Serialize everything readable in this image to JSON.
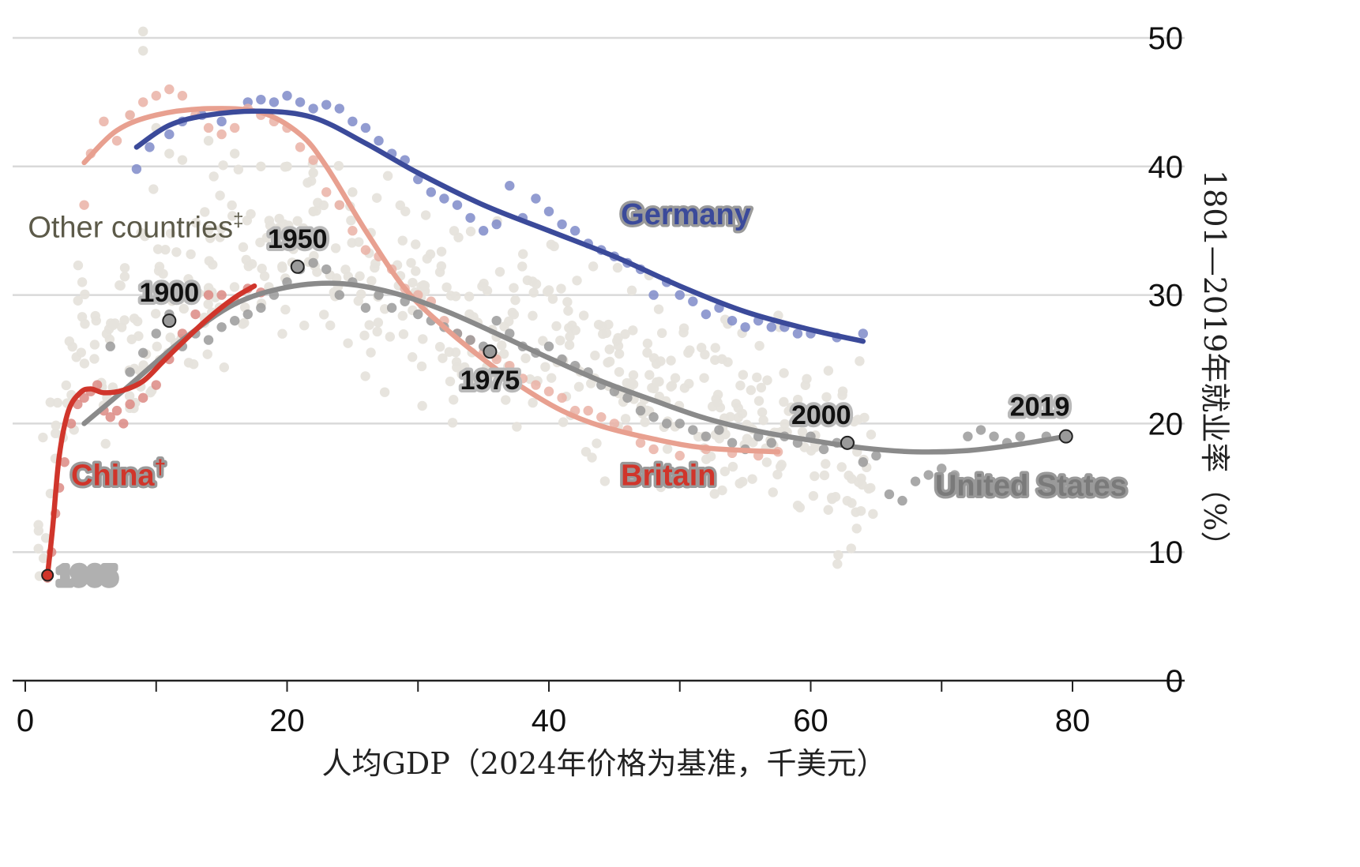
{
  "chart_data": {
    "type": "scatter",
    "xlabel": "人均GDP（2024年价格为基准，千美元）",
    "ylabel": "1801—2019年就业率（%）",
    "xlim": [
      -1,
      89
    ],
    "ylim": [
      0,
      52
    ],
    "x_ticks": [
      0,
      20,
      40,
      60,
      80
    ],
    "y_ticks": [
      0,
      10,
      20,
      30,
      40,
      50
    ],
    "grid": "horizontal",
    "colors": {
      "germany": "#3b4a9a",
      "germany_points": "#7f8bc9",
      "britain": "#e8a090",
      "britain_points": "#eab2a6",
      "china": "#d0352b",
      "china_points": "#dc8a84",
      "us": "#8a8a8a",
      "us_points": "#9a9a9a",
      "other_points": "#e6e3dc",
      "grid": "#d9d9d9"
    },
    "series": [
      {
        "name": "Germany",
        "color": "#3b4a9a",
        "trend": [
          [
            8.5,
            41.5
          ],
          [
            11,
            43.2
          ],
          [
            14,
            44
          ],
          [
            18,
            44.3
          ],
          [
            22,
            43.8
          ],
          [
            26,
            41.8
          ],
          [
            30,
            39.5
          ],
          [
            35,
            37
          ],
          [
            40,
            35
          ],
          [
            45,
            33
          ],
          [
            50,
            30.7
          ],
          [
            55,
            28.7
          ],
          [
            60,
            27.3
          ],
          [
            64,
            26.4
          ]
        ],
        "points": [
          [
            8.5,
            39.8
          ],
          [
            9.5,
            41.5
          ],
          [
            11,
            42.5
          ],
          [
            12,
            43.5
          ],
          [
            13.5,
            44
          ],
          [
            15,
            43.5
          ],
          [
            17,
            45
          ],
          [
            18,
            45.2
          ],
          [
            19,
            45
          ],
          [
            20,
            45.5
          ],
          [
            21,
            45
          ],
          [
            22,
            44.5
          ],
          [
            23,
            44.8
          ],
          [
            24,
            44.5
          ],
          [
            25,
            43.5
          ],
          [
            26,
            43
          ],
          [
            27,
            42
          ],
          [
            28,
            41
          ],
          [
            29,
            40.5
          ],
          [
            30,
            39
          ],
          [
            31,
            38
          ],
          [
            32,
            37.5
          ],
          [
            33,
            37
          ],
          [
            34,
            36
          ],
          [
            35,
            35
          ],
          [
            36,
            35.5
          ],
          [
            37,
            38.5
          ],
          [
            38,
            36
          ],
          [
            39,
            37.5
          ],
          [
            40,
            36.5
          ],
          [
            41,
            35.5
          ],
          [
            42,
            35
          ],
          [
            43,
            34
          ],
          [
            44,
            33.5
          ],
          [
            45,
            33
          ],
          [
            46,
            32.5
          ],
          [
            47,
            32
          ],
          [
            48,
            30
          ],
          [
            49,
            31
          ],
          [
            50,
            30
          ],
          [
            51,
            29.5
          ],
          [
            52,
            28.5
          ],
          [
            53,
            29
          ],
          [
            54,
            28
          ],
          [
            55,
            27.5
          ],
          [
            56,
            28
          ],
          [
            57,
            27.5
          ],
          [
            58,
            27.5
          ],
          [
            59,
            27
          ],
          [
            60,
            27
          ],
          [
            62,
            26.7
          ],
          [
            64,
            27
          ]
        ]
      },
      {
        "name": "Britain",
        "color": "#e8a090",
        "trend": [
          [
            4.5,
            40.3
          ],
          [
            7,
            42.8
          ],
          [
            10,
            44
          ],
          [
            14,
            44.5
          ],
          [
            18,
            44.2
          ],
          [
            21,
            42.5
          ],
          [
            23,
            40
          ],
          [
            26,
            35
          ],
          [
            29,
            30.5
          ],
          [
            32,
            27.5
          ],
          [
            35,
            25
          ],
          [
            38,
            22.8
          ],
          [
            41,
            21
          ],
          [
            44,
            19.8
          ],
          [
            48,
            18.8
          ],
          [
            52,
            18.1
          ],
          [
            57.5,
            17.8
          ]
        ],
        "points": [
          [
            4.5,
            37
          ],
          [
            5,
            41
          ],
          [
            6,
            43.5
          ],
          [
            7,
            42
          ],
          [
            8,
            44
          ],
          [
            9,
            45
          ],
          [
            10,
            45.5
          ],
          [
            11,
            46
          ],
          [
            12,
            45.5
          ],
          [
            13,
            44
          ],
          [
            14,
            43
          ],
          [
            15,
            42.5
          ],
          [
            16,
            43
          ],
          [
            17,
            44.5
          ],
          [
            18,
            44
          ],
          [
            19,
            43.5
          ],
          [
            20,
            43
          ],
          [
            21,
            41.5
          ],
          [
            22,
            40.5
          ],
          [
            23,
            38
          ],
          [
            24,
            37
          ],
          [
            25,
            35
          ],
          [
            26,
            33.5
          ],
          [
            27,
            33
          ],
          [
            28,
            32
          ],
          [
            29,
            30.5
          ],
          [
            30,
            30
          ],
          [
            31,
            29.5
          ],
          [
            32,
            28
          ],
          [
            33,
            27
          ],
          [
            34,
            26.5
          ],
          [
            35,
            25.5
          ],
          [
            36,
            25
          ],
          [
            37,
            24.5
          ],
          [
            38,
            23.5
          ],
          [
            39,
            23
          ],
          [
            40,
            22.5
          ],
          [
            41,
            22
          ],
          [
            42,
            21
          ],
          [
            43,
            21
          ],
          [
            44,
            20.5
          ],
          [
            45,
            20
          ],
          [
            46,
            19.5
          ],
          [
            47,
            18.5
          ],
          [
            48,
            18
          ],
          [
            50,
            17.5
          ],
          [
            52,
            18
          ],
          [
            54,
            17.7
          ],
          [
            56,
            17.5
          ],
          [
            57.5,
            17.8
          ]
        ]
      },
      {
        "name": "China†",
        "color": "#d0352b",
        "trend": [
          [
            1.7,
            8.2
          ],
          [
            2.1,
            12
          ],
          [
            2.6,
            17.5
          ],
          [
            3.3,
            21
          ],
          [
            4.2,
            22.4
          ],
          [
            5,
            22.7
          ],
          [
            6,
            22.4
          ],
          [
            7.5,
            22.6
          ],
          [
            9,
            23.3
          ],
          [
            10.5,
            24.8
          ],
          [
            12,
            26.3
          ],
          [
            14,
            28.2
          ],
          [
            16,
            29.8
          ],
          [
            17.5,
            30.7
          ]
        ],
        "points": [
          [
            1.7,
            8
          ],
          [
            2,
            10
          ],
          [
            2.3,
            13
          ],
          [
            2.6,
            15
          ],
          [
            3,
            17
          ],
          [
            3.5,
            20
          ],
          [
            4,
            21.5
          ],
          [
            4.5,
            22
          ],
          [
            5,
            22.5
          ],
          [
            5.5,
            23
          ],
          [
            6,
            21
          ],
          [
            6.5,
            20.5
          ],
          [
            7,
            21
          ],
          [
            7.5,
            20
          ],
          [
            8,
            21.5
          ],
          [
            9,
            22
          ],
          [
            10,
            23
          ],
          [
            11,
            25
          ],
          [
            12,
            27
          ],
          [
            13,
            28.5
          ],
          [
            14,
            30
          ],
          [
            15,
            30
          ],
          [
            16,
            29.5
          ],
          [
            17,
            30.5
          ],
          [
            18,
            30.2
          ]
        ]
      },
      {
        "name": "United States",
        "color": "#8a8a8a",
        "trend": [
          [
            4.5,
            20
          ],
          [
            8,
            23
          ],
          [
            12,
            26.5
          ],
          [
            16,
            29.3
          ],
          [
            20,
            30.6
          ],
          [
            24,
            30.9
          ],
          [
            28,
            30.2
          ],
          [
            32,
            28.8
          ],
          [
            36,
            27
          ],
          [
            40,
            25.1
          ],
          [
            44,
            23.3
          ],
          [
            48,
            21.8
          ],
          [
            52,
            20.4
          ],
          [
            56,
            19.4
          ],
          [
            60,
            18.7
          ],
          [
            64,
            18.1
          ],
          [
            68,
            17.8
          ],
          [
            72,
            17.9
          ],
          [
            76,
            18.4
          ],
          [
            79.5,
            19
          ]
        ],
        "points": [
          [
            6.5,
            26
          ],
          [
            8,
            24
          ],
          [
            9,
            25.5
          ],
          [
            10,
            27
          ],
          [
            11,
            28.5
          ],
          [
            12,
            26
          ],
          [
            13,
            27
          ],
          [
            14,
            26.5
          ],
          [
            15,
            27.5
          ],
          [
            16,
            28
          ],
          [
            17,
            28.5
          ],
          [
            18,
            29
          ],
          [
            19,
            30
          ],
          [
            20,
            31
          ],
          [
            21,
            32
          ],
          [
            22,
            32.5
          ],
          [
            23,
            32
          ],
          [
            24,
            30
          ],
          [
            25,
            31
          ],
          [
            26,
            29
          ],
          [
            27,
            30
          ],
          [
            28,
            29
          ],
          [
            29,
            29.5
          ],
          [
            30,
            28.5
          ],
          [
            31,
            28
          ],
          [
            32,
            27.5
          ],
          [
            33,
            27
          ],
          [
            34,
            26.5
          ],
          [
            35,
            26
          ],
          [
            36,
            28
          ],
          [
            37,
            27
          ],
          [
            38,
            26
          ],
          [
            39,
            25.5
          ],
          [
            40,
            26
          ],
          [
            41,
            25
          ],
          [
            42,
            24.5
          ],
          [
            43,
            24
          ],
          [
            44,
            23
          ],
          [
            45,
            22.5
          ],
          [
            46,
            22
          ],
          [
            47,
            21
          ],
          [
            48,
            20.5
          ],
          [
            49,
            20
          ],
          [
            50,
            20
          ],
          [
            51,
            19.5
          ],
          [
            52,
            19
          ],
          [
            53,
            19.5
          ],
          [
            54,
            18.5
          ],
          [
            55,
            18
          ],
          [
            56,
            19
          ],
          [
            57,
            18.5
          ],
          [
            58,
            19
          ],
          [
            59,
            18.5
          ],
          [
            60,
            19
          ],
          [
            61,
            18
          ],
          [
            62,
            18.5
          ],
          [
            63,
            18.5
          ],
          [
            64,
            17
          ],
          [
            65,
            17.5
          ],
          [
            66,
            14.5
          ],
          [
            67,
            14
          ],
          [
            68,
            15.5
          ],
          [
            69,
            16
          ],
          [
            70,
            16.5
          ],
          [
            71,
            16
          ],
          [
            72,
            19
          ],
          [
            73,
            19.5
          ],
          [
            74,
            19
          ],
          [
            75,
            18.5
          ],
          [
            76,
            19
          ],
          [
            78,
            19
          ],
          [
            79.5,
            19
          ]
        ]
      }
    ],
    "markers": [
      {
        "year": "1900",
        "x": 11,
        "y": 28,
        "label_dx": 0,
        "label_dy": -36
      },
      {
        "year": "1950",
        "x": 20.8,
        "y": 32.2,
        "label_dx": 0,
        "label_dy": -36
      },
      {
        "year": "1975",
        "x": 35.5,
        "y": 25.6,
        "label_dx": 0,
        "label_dy": 36
      },
      {
        "year": "2000",
        "x": 62.8,
        "y": 18.5,
        "label_dx": -2,
        "label_dy": -36
      },
      {
        "year": "2019",
        "x": 79.5,
        "y": 19,
        "label_dx": -2,
        "label_dy": -38
      }
    ],
    "china_start_label": "1965",
    "china_start": {
      "x": 1.7,
      "y": 8.2
    },
    "labels": {
      "germany": "Germany",
      "britain": "Britain",
      "china": "China",
      "china_mark": "†",
      "us": "United States",
      "other": "Other countries",
      "other_mark": "‡"
    },
    "label_positions": {
      "germany": {
        "x": 45.5,
        "y": 35.5
      },
      "britain": {
        "x": 45.5,
        "y": 15.2
      },
      "china": {
        "x": 3.5,
        "y": 15.2
      },
      "us": {
        "x": 69.5,
        "y": 14.4
      },
      "other": {
        "x": 0.2,
        "y": 34.5
      }
    }
  }
}
